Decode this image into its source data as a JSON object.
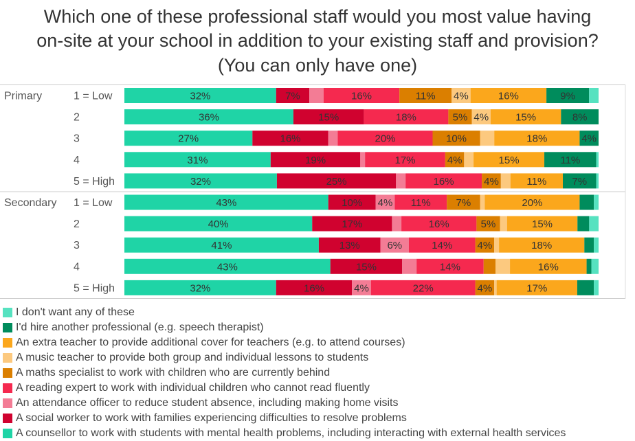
{
  "chart_data": {
    "type": "stacked-bar-horizontal",
    "title": "Which one of these professional staff would you most value having on-site at your school in addition to your existing staff and provision? (You can only have one)",
    "title_lines": [
      "Which one of these professional staff would you most value having",
      "on-site at your school in addition to your existing staff and provision?",
      "(You can only have one)"
    ],
    "xlim": [
      0,
      100
    ],
    "unit": "%",
    "categories": [
      "A counsellor to work with students with mental health problems, including interacting with external health services",
      "A social worker to work with families experiencing difficulties to resolve problems",
      "An attendance officer to reduce student absence, including making home visits",
      "A reading expert to work with individual children who cannot read fluently",
      "A maths specialist to work with children who are currently behind",
      "A music teacher to provide both group and individual lessons to students",
      "An extra teacher to provide additional cover for teachers (e.g. to attend courses)",
      "I'd hire another professional (e.g. speech therapist)",
      "I don't want any of these"
    ],
    "colors": [
      "#1fd4a6",
      "#d0022f",
      "#f37c95",
      "#f5294f",
      "#db7f00",
      "#fcc97f",
      "#fba71c",
      "#008c5c",
      "#56e2c0"
    ],
    "groups": [
      {
        "name": "Primary",
        "rows": [
          {
            "label": "1 = Low",
            "values": [
              32,
              7,
              3,
              16,
              11,
              4,
              16,
              9,
              2
            ]
          },
          {
            "label": "2",
            "values": [
              36,
              15,
              0,
              18,
              5,
              4,
              15,
              8,
              0
            ]
          },
          {
            "label": "3",
            "values": [
              27,
              16,
              2,
              20,
              10,
              3,
              18,
              4,
              0
            ]
          },
          {
            "label": "4",
            "values": [
              31,
              19,
              1,
              17,
              4,
              2,
              15,
              11,
              0.5
            ]
          },
          {
            "label": "5 = High",
            "values": [
              32,
              25,
              2,
              16,
              4,
              2,
              11,
              7,
              0.5
            ]
          }
        ]
      },
      {
        "name": "Secondary",
        "rows": [
          {
            "label": "1 = Low",
            "values": [
              43,
              10,
              4,
              11,
              7,
              1,
              20,
              3,
              1
            ]
          },
          {
            "label": "2",
            "values": [
              40,
              17,
              2,
              16,
              5,
              1.5,
              15,
              2.5,
              2
            ]
          },
          {
            "label": "3",
            "values": [
              41,
              13,
              6,
              14,
              4,
              1,
              18,
              2,
              1
            ]
          },
          {
            "label": "4",
            "values": [
              43,
              15,
              3,
              14,
              2.5,
              3,
              16,
              1,
              1.5
            ]
          },
          {
            "label": "5 = High",
            "values": [
              32,
              16,
              4,
              22,
              4,
              0.5,
              17,
              3.5,
              1
            ]
          }
        ]
      }
    ],
    "legend_order": [
      8,
      7,
      6,
      5,
      4,
      3,
      2,
      1,
      0
    ],
    "legend_position": "bottom",
    "label_threshold": 4
  }
}
